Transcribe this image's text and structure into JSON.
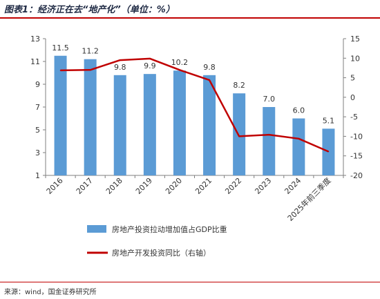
{
  "header": {
    "title": "图表1：经济正在去“地产化”（单位：%）"
  },
  "footer": {
    "source": "来源：wind，国金证券研究所"
  },
  "chart_data": {
    "type": "bar",
    "categories": [
      "2016",
      "2017",
      "2018",
      "2019",
      "2020",
      "2021",
      "2022",
      "2023",
      "2024",
      "2025年前三季度"
    ],
    "series": [
      {
        "name": "房地产投资拉动增加值占GDP比重",
        "type": "bar",
        "axis": "left",
        "values": [
          11.5,
          11.2,
          9.8,
          9.9,
          10.2,
          9.8,
          8.2,
          7.0,
          6.0,
          5.1
        ],
        "color": "#5b9bd5"
      },
      {
        "name": "房地产开发投资同比（右轴）",
        "type": "line",
        "axis": "right",
        "values": [
          6.9,
          7.0,
          9.5,
          9.9,
          7.0,
          4.4,
          -10.0,
          -9.6,
          -10.6,
          -13.9
        ],
        "color": "#c00000"
      }
    ],
    "y_left": {
      "min": 1,
      "max": 13,
      "ticks": [
        1,
        3,
        5,
        7,
        9,
        11,
        13
      ]
    },
    "y_right": {
      "min": -20,
      "max": 15,
      "ticks": [
        15,
        10,
        5,
        0,
        -5,
        -10,
        -15,
        -20
      ]
    },
    "legend_position": "bottom",
    "grid": false
  }
}
